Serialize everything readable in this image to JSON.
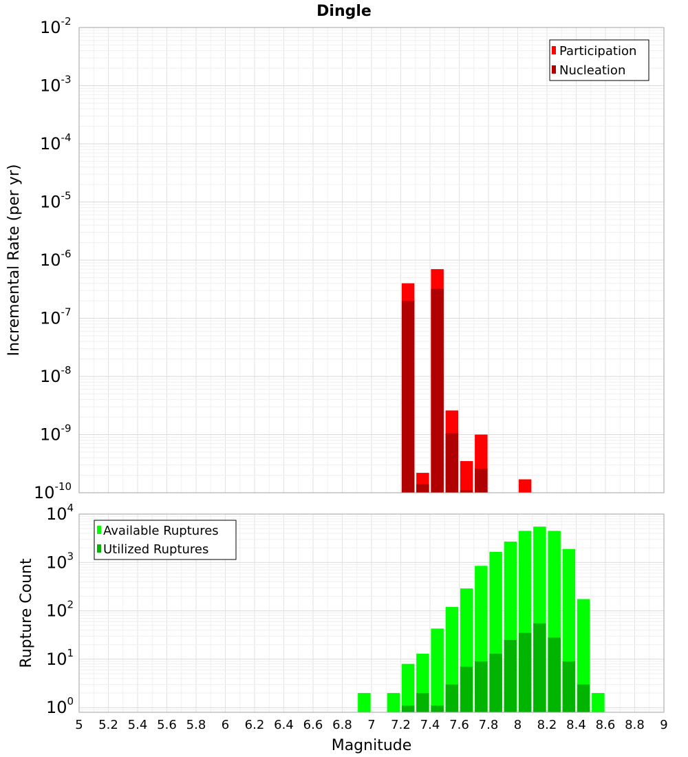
{
  "figure": {
    "title": "Dingle"
  },
  "chart_data": [
    {
      "type": "bar",
      "title": "Dingle",
      "xlabel": "Magnitude",
      "ylabel": "Incremental Rate (per yr)",
      "yscale": "log",
      "xlim": [
        5,
        9
      ],
      "ylim": [
        1e-10,
        0.01
      ],
      "y_tick_exponents": [
        -10,
        -9,
        -8,
        -7,
        -6,
        -5,
        -4,
        -3,
        -2
      ],
      "legend": {
        "position": "top-right"
      },
      "grid": true,
      "series": [
        {
          "name": "Participation",
          "color": "#ff0000",
          "x": [
            7.25,
            7.35,
            7.45,
            7.55,
            7.65,
            7.75,
            8.05
          ],
          "values": [
            4e-07,
            2.2e-10,
            7e-07,
            2.6e-09,
            3.5e-10,
            1e-09,
            1.7e-10
          ]
        },
        {
          "name": "Nucleation",
          "color": "#b00000",
          "x": [
            7.25,
            7.35,
            7.45,
            7.55,
            7.65,
            7.75
          ],
          "values": [
            2e-07,
            1.4e-10,
            3.2e-07,
            1.05e-09,
            1.1e-10,
            2.6e-10
          ]
        }
      ]
    },
    {
      "type": "bar",
      "xlabel": "Magnitude",
      "ylabel": "Rupture Count",
      "yscale": "log",
      "xlim": [
        5,
        9
      ],
      "ylim": [
        0.8,
        10000
      ],
      "y_tick_exponents": [
        0,
        1,
        2,
        3,
        4
      ],
      "x_ticks": [
        "5",
        "5.2",
        "5.4",
        "5.6",
        "5.8",
        "6",
        "6.2",
        "6.4",
        "6.6",
        "6.8",
        "7",
        "7.2",
        "7.4",
        "7.6",
        "7.8",
        "8",
        "8.2",
        "8.4",
        "8.6",
        "8.8",
        "9"
      ],
      "legend": {
        "position": "top-left"
      },
      "grid": true,
      "series": [
        {
          "name": "Available Ruptures",
          "color": "#00ff00",
          "x": [
            6.95,
            7.15,
            7.25,
            7.35,
            7.45,
            7.55,
            7.65,
            7.75,
            7.85,
            7.95,
            8.05,
            8.15,
            8.25,
            8.35,
            8.45,
            8.55
          ],
          "values": [
            2,
            2,
            8,
            13,
            43,
            120,
            290,
            850,
            1650,
            2700,
            4500,
            5500,
            4500,
            1900,
            175,
            2
          ]
        },
        {
          "name": "Utilized Ruptures",
          "color": "#00b400",
          "x": [
            7.25,
            7.35,
            7.45,
            7.55,
            7.65,
            7.75,
            7.85,
            7.95,
            8.05,
            8.15,
            8.25,
            8.35,
            8.45
          ],
          "values": [
            1.1,
            2,
            1.1,
            3,
            7,
            9,
            13,
            25,
            35,
            55,
            28,
            9,
            3
          ]
        }
      ]
    }
  ]
}
